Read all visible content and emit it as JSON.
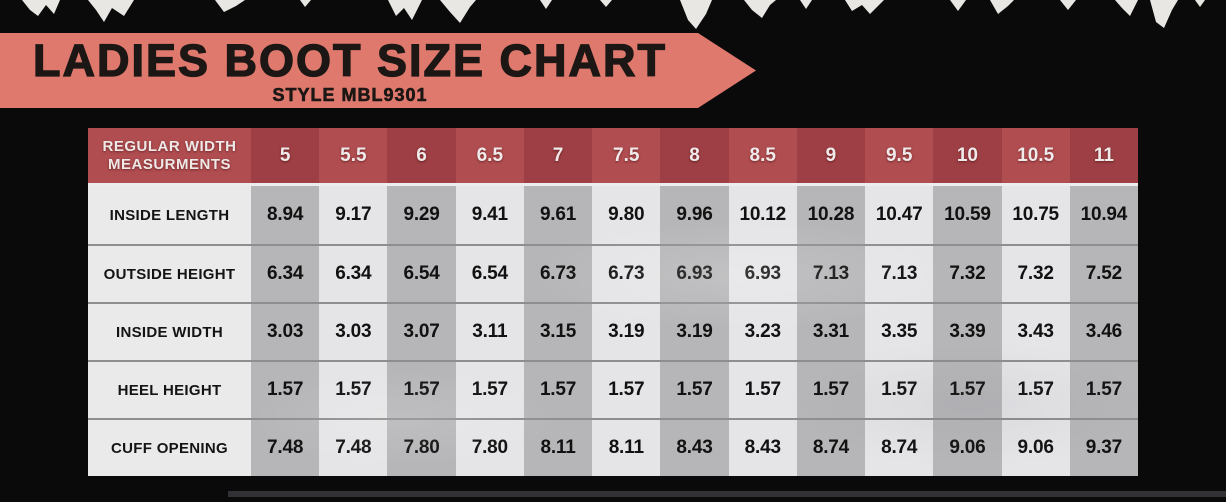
{
  "banner": {
    "title": "LADIES BOOT SIZE CHART",
    "subtitle": "STYLE MBL9301",
    "bg_color": "#df796d",
    "text_color": "#1c1714"
  },
  "table": {
    "corner_line1": "REGULAR WIDTH",
    "corner_line2": "MEASURMENTS",
    "sizes": [
      "5",
      "5.5",
      "6",
      "6.5",
      "7",
      "7.5",
      "8",
      "8.5",
      "9",
      "9.5",
      "10",
      "10.5",
      "11"
    ],
    "rows": [
      {
        "label": "INSIDE LENGTH",
        "values": [
          "8.94",
          "9.17",
          "9.29",
          "9.41",
          "9.61",
          "9.80",
          "9.96",
          "10.12",
          "10.28",
          "10.47",
          "10.59",
          "10.75",
          "10.94"
        ]
      },
      {
        "label": "OUTSIDE HEIGHT",
        "values": [
          "6.34",
          "6.34",
          "6.54",
          "6.54",
          "6.73",
          "6.73",
          "6.93",
          "6.93",
          "7.13",
          "7.13",
          "7.32",
          "7.32",
          "7.52"
        ]
      },
      {
        "label": "INSIDE WIDTH",
        "values": [
          "3.03",
          "3.03",
          "3.07",
          "3.11",
          "3.15",
          "3.19",
          "3.19",
          "3.23",
          "3.31",
          "3.35",
          "3.39",
          "3.43",
          "3.46"
        ]
      },
      {
        "label": "HEEL HEIGHT",
        "values": [
          "1.57",
          "1.57",
          "1.57",
          "1.57",
          "1.57",
          "1.57",
          "1.57",
          "1.57",
          "1.57",
          "1.57",
          "1.57",
          "1.57",
          "1.57"
        ]
      },
      {
        "label": "CUFF OPENING",
        "values": [
          "7.48",
          "7.48",
          "7.80",
          "7.80",
          "8.11",
          "8.11",
          "8.43",
          "8.43",
          "8.74",
          "8.74",
          "9.06",
          "9.06",
          "9.37"
        ]
      }
    ],
    "colors": {
      "header_dark": "#9d3f44",
      "header_light": "#b04d50",
      "column_dark": "#b6b6b8",
      "column_light": "#e5e5e7",
      "label_bg": "#eaeaeb",
      "separator": "#8e8e90"
    }
  },
  "chart_data": {
    "type": "table",
    "title": "LADIES BOOT SIZE CHART",
    "subtitle": "STYLE MBL9301",
    "columns": [
      "REGULAR WIDTH MEASURMENTS",
      "5",
      "5.5",
      "6",
      "6.5",
      "7",
      "7.5",
      "8",
      "8.5",
      "9",
      "9.5",
      "10",
      "10.5",
      "11"
    ],
    "rows": [
      [
        "INSIDE LENGTH",
        8.94,
        9.17,
        9.29,
        9.41,
        9.61,
        9.8,
        9.96,
        10.12,
        10.28,
        10.47,
        10.59,
        10.75,
        10.94
      ],
      [
        "OUTSIDE HEIGHT",
        6.34,
        6.34,
        6.54,
        6.54,
        6.73,
        6.73,
        6.93,
        6.93,
        7.13,
        7.13,
        7.32,
        7.32,
        7.52
      ],
      [
        "INSIDE WIDTH",
        3.03,
        3.03,
        3.07,
        3.11,
        3.15,
        3.19,
        3.19,
        3.23,
        3.31,
        3.35,
        3.39,
        3.43,
        3.46
      ],
      [
        "HEEL HEIGHT",
        1.57,
        1.57,
        1.57,
        1.57,
        1.57,
        1.57,
        1.57,
        1.57,
        1.57,
        1.57,
        1.57,
        1.57,
        1.57
      ],
      [
        "CUFF OPENING",
        7.48,
        7.48,
        7.8,
        7.8,
        8.11,
        8.11,
        8.43,
        8.43,
        8.74,
        8.74,
        9.06,
        9.06,
        9.37
      ]
    ],
    "legend_position": "none",
    "grid": false
  }
}
